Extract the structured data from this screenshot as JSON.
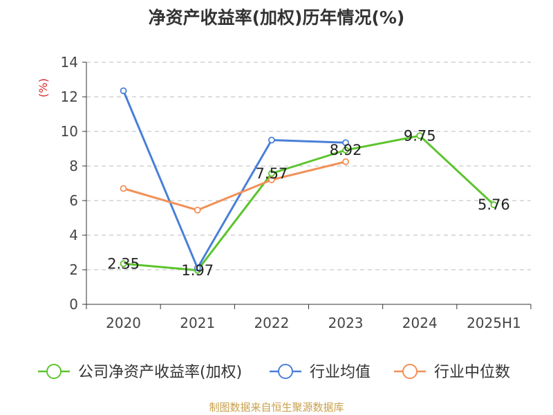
{
  "chart_data": {
    "type": "line",
    "title": "净资产收益率(加权)历年情况(%)",
    "ylabel": "(%)",
    "categories": [
      "2020",
      "2021",
      "2022",
      "2023",
      "2024",
      "2025H1"
    ],
    "ylim": [
      0,
      14
    ],
    "yticks": [
      0,
      2,
      4,
      6,
      8,
      10,
      12,
      14
    ],
    "grid": true,
    "legend_position": "bottom",
    "series": [
      {
        "name": "公司净资产收益率(加权)",
        "color": "#5cc42d",
        "values": [
          2.35,
          1.97,
          7.57,
          8.92,
          9.75,
          5.76
        ],
        "labels": [
          "2.35",
          "1.97",
          "7.57",
          "8.92",
          "9.75",
          "5.76"
        ]
      },
      {
        "name": "行业均值",
        "color": "#4a7fd8",
        "values": [
          12.35,
          2.1,
          9.5,
          9.35,
          null,
          null
        ]
      },
      {
        "name": "行业中位数",
        "color": "#f29057",
        "values": [
          6.7,
          5.45,
          7.2,
          8.25,
          null,
          null
        ]
      }
    ]
  },
  "source": "制图数据来自恒生聚源数据库"
}
